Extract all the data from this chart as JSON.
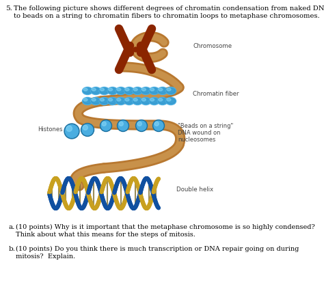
{
  "title_num": "5.",
  "label_chromosome": "Chromosome",
  "label_chromatin_fiber": "Chromatin fiber",
  "label_beads_1": "\"Beads on a string\"",
  "label_beads_2": "DNA wound on",
  "label_beads_3": "nucleosomes",
  "label_double_helix": "Double helix",
  "label_histones": "Histones",
  "bg_color": "#ffffff",
  "text_color": "#000000",
  "fig_width": 4.74,
  "fig_height": 4.23,
  "dpi": 100
}
